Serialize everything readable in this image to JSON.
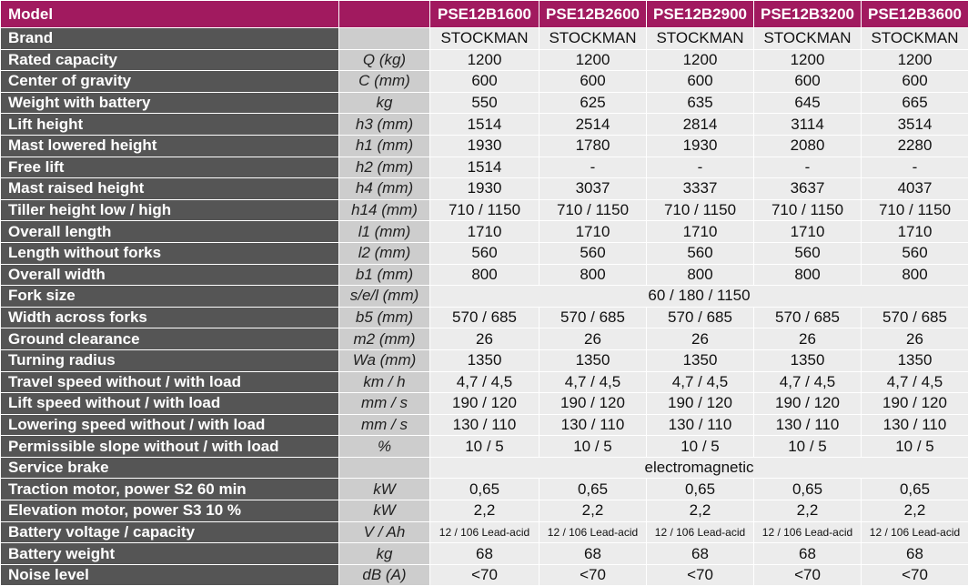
{
  "header": {
    "title": "Model",
    "models": [
      "PSE12B1600",
      "PSE12B2600",
      "PSE12B2900",
      "PSE12B3200",
      "PSE12B3600"
    ]
  },
  "rows": [
    {
      "label": "Brand",
      "values": [
        "STOCKMAN",
        "STOCKMAN",
        "STOCKMAN",
        "STOCKMAN",
        "STOCKMAN"
      ]
    },
    {
      "label": "Rated capacity",
      "unit": "Q (kg)",
      "values": [
        "1200",
        "1200",
        "1200",
        "1200",
        "1200"
      ]
    },
    {
      "label": "Center of gravity",
      "unit": "C (mm)",
      "values": [
        "600",
        "600",
        "600",
        "600",
        "600"
      ]
    },
    {
      "label": "Weight with battery",
      "unit": "kg",
      "values": [
        "550",
        "625",
        "635",
        "645",
        "665"
      ]
    },
    {
      "label": "Lift height",
      "unit": "h3 (mm)",
      "values": [
        "1514",
        "2514",
        "2814",
        "3114",
        "3514"
      ]
    },
    {
      "label": "Mast lowered height",
      "unit": "h1 (mm)",
      "values": [
        "1930",
        "1780",
        "1930",
        "2080",
        "2280"
      ]
    },
    {
      "label": "Free lift",
      "unit": "h2 (mm)",
      "values": [
        "1514",
        "-",
        "-",
        "-",
        "-"
      ]
    },
    {
      "label": "Mast raised height",
      "unit": "h4 (mm)",
      "values": [
        "1930",
        "3037",
        "3337",
        "3637",
        "4037"
      ]
    },
    {
      "label": "Tiller height low / high",
      "unit": "h14 (mm)",
      "values": [
        "710 / 1150",
        "710 / 1150",
        "710 / 1150",
        "710 / 1150",
        "710 / 1150"
      ]
    },
    {
      "label": "Overall length",
      "unit": "l1 (mm)",
      "values": [
        "1710",
        "1710",
        "1710",
        "1710",
        "1710"
      ]
    },
    {
      "label": "Length without forks",
      "unit": "l2 (mm)",
      "values": [
        "560",
        "560",
        "560",
        "560",
        "560"
      ]
    },
    {
      "label": "Overall width",
      "unit": "b1 (mm)",
      "values": [
        "800",
        "800",
        "800",
        "800",
        "800"
      ]
    },
    {
      "label": "Fork size",
      "unit": "s/e/l (mm)",
      "value": "60 / 180 / 1150"
    },
    {
      "label": "Width across forks",
      "unit": "b5 (mm)",
      "values": [
        "570 / 685",
        "570 / 685",
        "570 / 685",
        "570 / 685",
        "570 / 685"
      ]
    },
    {
      "label": "Ground clearance",
      "unit": "m2 (mm)",
      "values": [
        "26",
        "26",
        "26",
        "26",
        "26"
      ]
    },
    {
      "label": "Turning radius",
      "unit": "Wa (mm)",
      "values": [
        "1350",
        "1350",
        "1350",
        "1350",
        "1350"
      ]
    },
    {
      "label": "Travel speed without / with load",
      "unit": "km / h",
      "values": [
        "4,7 / 4,5",
        "4,7 / 4,5",
        "4,7 / 4,5",
        "4,7 / 4,5",
        "4,7 / 4,5"
      ]
    },
    {
      "label": "Lift speed without / with load",
      "unit": "mm / s",
      "values": [
        "190 / 120",
        "190 / 120",
        "190 / 120",
        "190 / 120",
        "190 / 120"
      ]
    },
    {
      "label": "Lowering speed without / with load",
      "unit": "mm / s",
      "values": [
        "130 / 110",
        "130 / 110",
        "130 / 110",
        "130 / 110",
        "130 / 110"
      ]
    },
    {
      "label": "Permissible slope without / with load",
      "unit": "%",
      "values": [
        "10 / 5",
        "10 / 5",
        "10 / 5",
        "10 / 5",
        "10 / 5"
      ]
    },
    {
      "label": "Service brake",
      "value": "electromagnetic"
    },
    {
      "label": "Traction motor, power S2 60 min",
      "unit": "kW",
      "values": [
        "0,65",
        "0,65",
        "0,65",
        "0,65",
        "0,65"
      ]
    },
    {
      "label": "Elevation motor, power S3 10 %",
      "unit": "kW",
      "values": [
        "2,2",
        "2,2",
        "2,2",
        "2,2",
        "2,2"
      ]
    },
    {
      "label": "Battery voltage / capacity",
      "unit": "V / Ah",
      "values": [
        "12 / 106 Lead-acid",
        "12 / 106 Lead-acid",
        "12 / 106 Lead-acid",
        "12 / 106 Lead-acid",
        "12 / 106 Lead-acid"
      ]
    },
    {
      "label": "Battery weight",
      "unit": "kg",
      "values": [
        "68",
        "68",
        "68",
        "68",
        "68"
      ]
    },
    {
      "label": "Noise level",
      "unit": "dB (A)",
      "values": [
        "<70",
        "<70",
        "<70",
        "<70",
        "<70"
      ]
    }
  ]
}
